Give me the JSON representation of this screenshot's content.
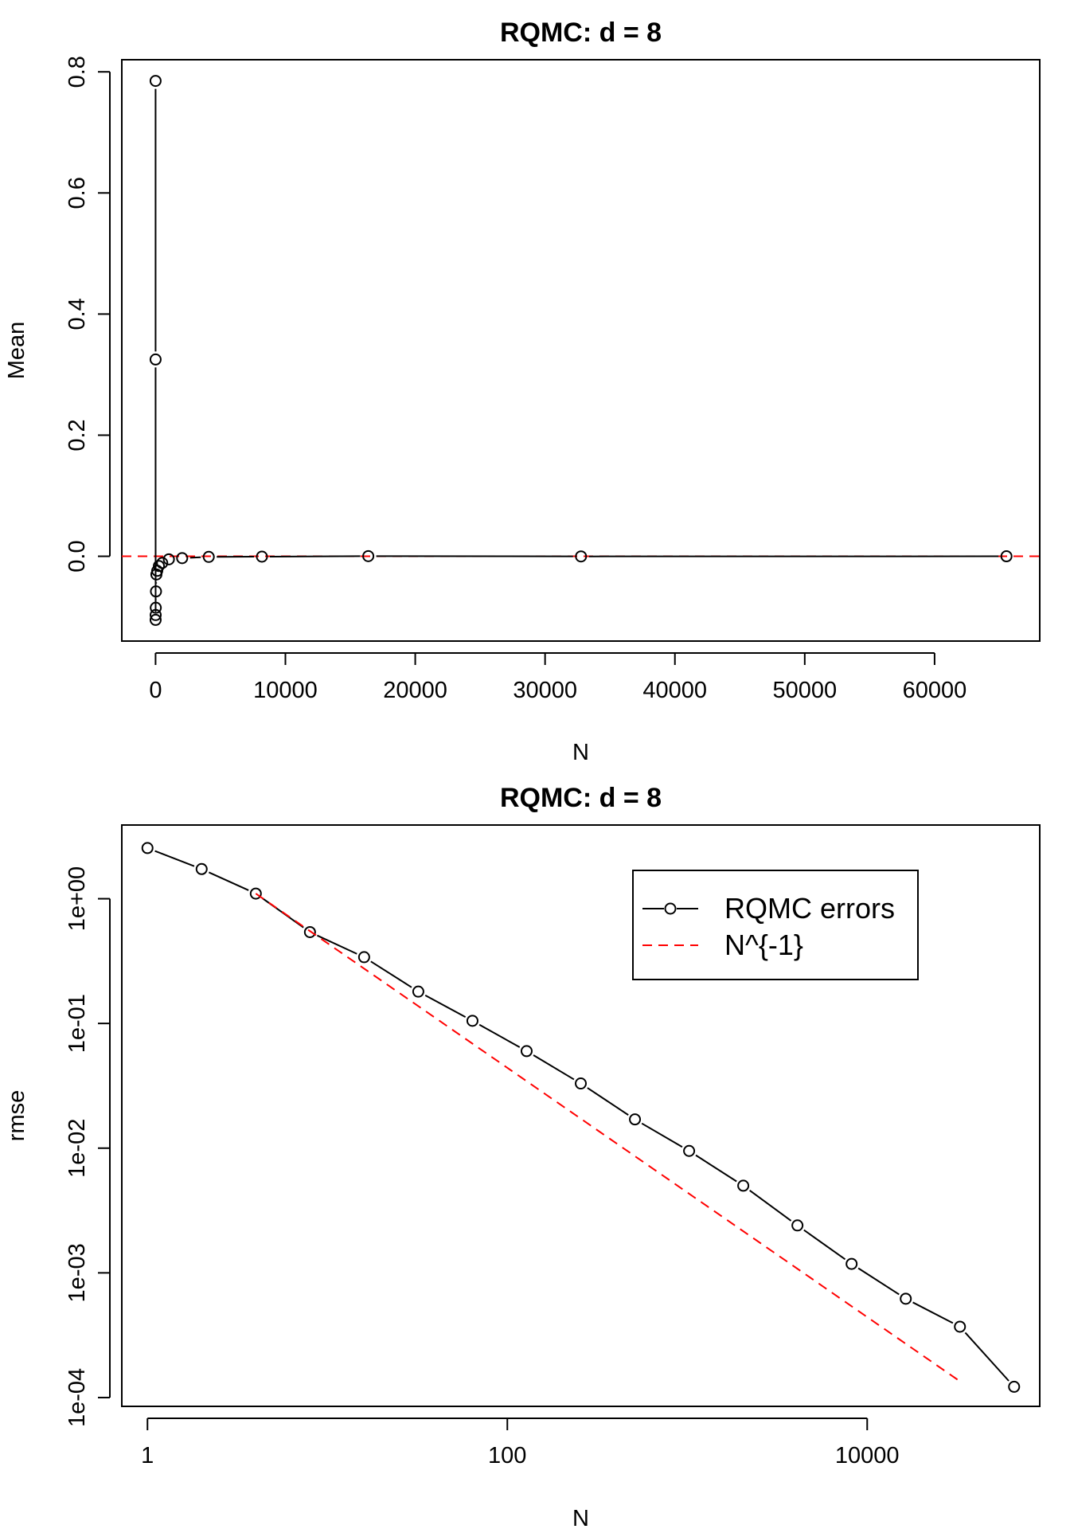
{
  "colors": {
    "series": "#000000",
    "reference": "#ff0000",
    "frame": "#000000",
    "background": "#ffffff"
  },
  "chart_data": [
    {
      "type": "line",
      "title": "RQMC: d = 8",
      "xlabel": "N",
      "ylabel": "Mean",
      "xlim": [
        -2600,
        68100
      ],
      "ylim": [
        -0.14,
        0.82
      ],
      "x_ticks": [
        0,
        10000,
        20000,
        30000,
        40000,
        50000,
        60000
      ],
      "x_tick_labels": [
        "0",
        "10000",
        "20000",
        "30000",
        "40000",
        "50000",
        "60000"
      ],
      "y_ticks": [
        0.0,
        0.2,
        0.4,
        0.6,
        0.8
      ],
      "y_tick_labels": [
        "0.0",
        "0.2",
        "0.4",
        "0.6",
        "0.8"
      ],
      "series": [
        {
          "style": "points-and-lines",
          "color": "#000000",
          "x": [
            1,
            2,
            4,
            8,
            16,
            32,
            64,
            128,
            256,
            512,
            1024,
            2048,
            4096,
            8192,
            16384,
            32768,
            65536
          ],
          "y": [
            0.785,
            0.325,
            -0.105,
            -0.097,
            -0.085,
            -0.058,
            -0.03,
            -0.024,
            -0.016,
            -0.011,
            -0.005,
            -0.003,
            -0.001,
            -0.0006,
            0.0003,
            -0.0002,
            0.0
          ]
        }
      ],
      "reference_lines": [
        {
          "orientation": "horizontal",
          "y": 0,
          "color": "#ff0000",
          "style": "dashed"
        }
      ],
      "grid": false
    },
    {
      "type": "line",
      "title": "RQMC: d = 8",
      "xlabel": "N",
      "ylabel": "rmse",
      "xscale": "log",
      "yscale": "log",
      "xlim": [
        0.72,
        91000
      ],
      "ylim": [
        8.5e-05,
        3.9
      ],
      "x_ticks": [
        1,
        100,
        10000
      ],
      "x_tick_labels": [
        "1",
        "100",
        "10000"
      ],
      "y_ticks": [
        1,
        0.1,
        0.01,
        0.001,
        0.0001
      ],
      "y_tick_labels": [
        "1e+00",
        "1e-01",
        "1e-02",
        "1e-03",
        "1e-04"
      ],
      "series": [
        {
          "name": "RQMC errors",
          "style": "points-and-lines",
          "color": "#000000",
          "x": [
            1,
            2,
            4,
            8,
            16,
            32,
            64,
            128,
            256,
            512,
            1024,
            2048,
            4096,
            8192,
            16384,
            32768,
            65536
          ],
          "y": [
            2.55,
            1.73,
            1.1,
            0.54,
            0.34,
            0.18,
            0.105,
            0.06,
            0.033,
            0.017,
            0.0095,
            0.005,
            0.0024,
            0.00118,
            0.00062,
            0.00037,
            0.000122
          ]
        },
        {
          "name": "N^{-1}",
          "style": "dashed",
          "color": "#ff0000",
          "x": [
            4,
            32768
          ],
          "y": [
            1.1,
            0.000135
          ]
        }
      ],
      "legend": {
        "placement": "top-right"
      },
      "grid": false
    }
  ]
}
